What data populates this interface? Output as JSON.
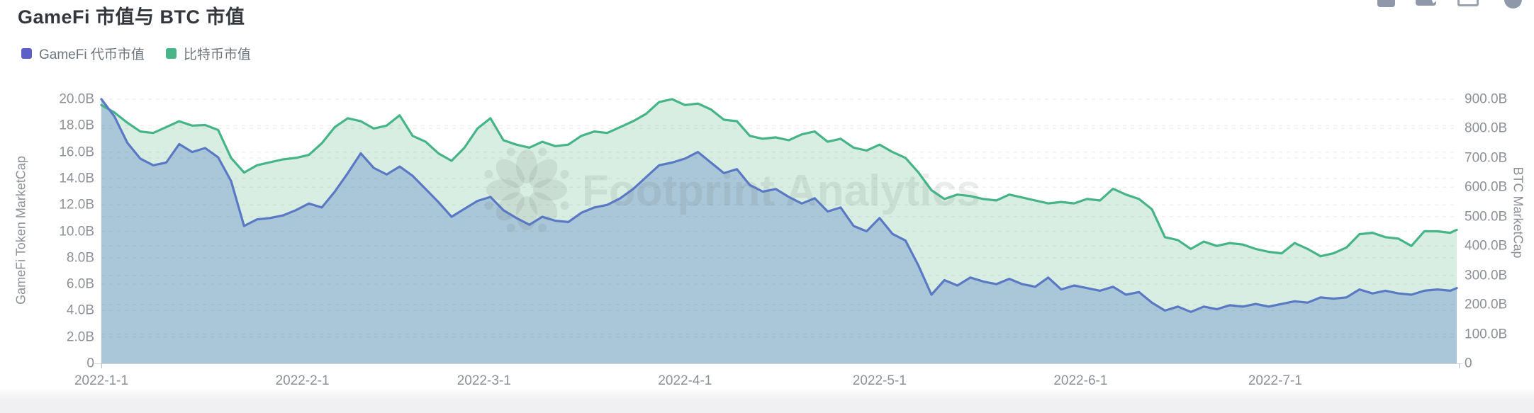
{
  "header": {
    "title": "GameFi 市值与 BTC 市值"
  },
  "toolbar": {
    "icons": [
      {
        "name": "panel-icon",
        "shape": "rounded-square",
        "color": "#8f98a8"
      },
      {
        "name": "screenshot-icon",
        "shape": "notched-square",
        "color": "#8f98a8"
      },
      {
        "name": "frame-icon",
        "shape": "outlined-square",
        "color": "#99a1b0"
      },
      {
        "name": "circle-icon",
        "shape": "circle",
        "color": "#8f98a8"
      }
    ]
  },
  "legend": {
    "items": [
      {
        "label": "GameFi 代币市值",
        "color": "#5b5fc7"
      },
      {
        "label": "比特币市值",
        "color": "#47b587"
      }
    ]
  },
  "watermark": {
    "text": "Footprint Analytics",
    "color": "rgba(100,105,110,0.13)"
  },
  "chart_data": {
    "type": "area",
    "title": "GameFi 市值与 BTC 市值",
    "grid": "dashed-horizontal",
    "legend_position": "top-left",
    "x_start_date": "2022-01-01",
    "sample_interval_days": 2,
    "total_days": 209,
    "x_tick_labels": [
      "2022-1-1",
      "2022-2-1",
      "2022-3-1",
      "2022-4-1",
      "2022-5-1",
      "2022-6-1",
      "2022-7-1"
    ],
    "x_tick_days": [
      0,
      31,
      59,
      90,
      120,
      151,
      181
    ],
    "left_axis": {
      "label": "GameFi Token MarketCap",
      "min": 0,
      "max": 20,
      "tick_labels": [
        "20.0B",
        "18.0B",
        "16.0B",
        "14.0B",
        "12.0B",
        "10.0B",
        "8.0B",
        "6.0B",
        "4.0B",
        "2.0B",
        "0"
      ]
    },
    "right_axis": {
      "label": "BTC MarketCap",
      "min": 0,
      "max": 900,
      "tick_labels": [
        "900.0B",
        "800.0B",
        "700.0B",
        "600.0B",
        "500.0B",
        "400.0B",
        "300.0B",
        "200.0B",
        "100.0B",
        "0"
      ]
    },
    "series": [
      {
        "name": "比特币市值",
        "axis": "right",
        "line_color": "#45b487",
        "fill_color": "#d9eee3",
        "unit": "B",
        "values": [
          880,
          855,
          820,
          790,
          785,
          805,
          825,
          810,
          812,
          795,
          700,
          650,
          675,
          685,
          695,
          700,
          710,
          750,
          805,
          835,
          825,
          800,
          810,
          845,
          775,
          755,
          715,
          690,
          735,
          800,
          835,
          760,
          745,
          735,
          755,
          740,
          745,
          775,
          790,
          785,
          805,
          825,
          850,
          890,
          900,
          880,
          885,
          865,
          830,
          825,
          775,
          765,
          770,
          760,
          780,
          790,
          755,
          765,
          735,
          725,
          745,
          720,
          700,
          650,
          590,
          560,
          575,
          570,
          560,
          555,
          575,
          565,
          555,
          545,
          550,
          545,
          560,
          555,
          595,
          575,
          560,
          525,
          430,
          420,
          390,
          415,
          400,
          410,
          405,
          390,
          380,
          375,
          410,
          390,
          365,
          375,
          395,
          440,
          445,
          430,
          425,
          400,
          450,
          450,
          445,
          455
        ]
      },
      {
        "name": "GameFi 代币市值",
        "axis": "left",
        "line_color": "#5a79c4",
        "fill_color": "#aac7d9",
        "unit": "B",
        "values": [
          20.0,
          18.7,
          16.7,
          15.5,
          15.0,
          15.2,
          16.6,
          16.0,
          16.3,
          15.6,
          13.8,
          10.4,
          10.9,
          11.0,
          11.2,
          11.6,
          12.1,
          11.8,
          13.0,
          14.4,
          15.9,
          14.8,
          14.3,
          14.9,
          14.2,
          13.2,
          12.2,
          11.1,
          11.7,
          12.3,
          12.6,
          11.6,
          11.0,
          10.5,
          11.1,
          10.8,
          10.7,
          11.4,
          11.8,
          12.0,
          12.5,
          13.2,
          14.1,
          15.0,
          15.2,
          15.5,
          16.0,
          15.2,
          14.4,
          14.7,
          13.5,
          13.0,
          13.2,
          12.6,
          12.1,
          12.5,
          11.5,
          11.8,
          10.4,
          10.0,
          11.0,
          9.8,
          9.3,
          7.4,
          5.2,
          6.3,
          5.9,
          6.5,
          6.2,
          6.0,
          6.4,
          6.0,
          5.8,
          6.5,
          5.6,
          5.9,
          5.7,
          5.5,
          5.8,
          5.2,
          5.4,
          4.6,
          4.0,
          4.3,
          3.9,
          4.3,
          4.1,
          4.4,
          4.3,
          4.5,
          4.3,
          4.5,
          4.7,
          4.6,
          5.0,
          4.9,
          5.0,
          5.6,
          5.3,
          5.5,
          5.3,
          5.2,
          5.5,
          5.6,
          5.5,
          5.7
        ]
      }
    ]
  }
}
